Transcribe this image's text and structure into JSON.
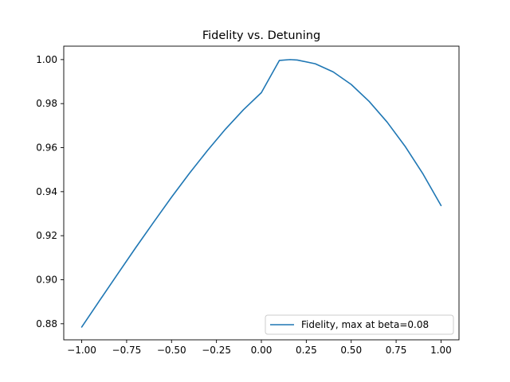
{
  "chart_data": {
    "type": "line",
    "title": "Fidelity vs. Detuning",
    "xlabel": "",
    "ylabel": "",
    "xlim": [
      -1.1,
      1.1
    ],
    "ylim": [
      0.8727,
      1.0061
    ],
    "grid": false,
    "legend_position": "lower-right",
    "x_ticks": [
      -1.0,
      -0.75,
      -0.5,
      -0.25,
      0.0,
      0.25,
      0.5,
      0.75,
      1.0
    ],
    "x_tick_labels": [
      "−1.00",
      "−0.75",
      "−0.50",
      "−0.25",
      "0.00",
      "0.25",
      "0.50",
      "0.75",
      "1.00"
    ],
    "y_ticks": [
      0.88,
      0.9,
      0.92,
      0.94,
      0.96,
      0.98,
      1.0
    ],
    "y_tick_labels": [
      "0.88",
      "0.90",
      "0.92",
      "0.94",
      "0.96",
      "0.98",
      "1.00"
    ],
    "series": [
      {
        "name": "Fidelity, max at beta=0.08",
        "color": "#1f77b4",
        "x": [
          -1.0,
          -0.9,
          -0.8,
          -0.7,
          -0.6,
          -0.5,
          -0.4,
          -0.3,
          -0.2,
          -0.1,
          0.0,
          0.1,
          0.16,
          0.2,
          0.3,
          0.4,
          0.5,
          0.6,
          0.7,
          0.8,
          0.9,
          1.0
        ],
        "y": [
          0.8785,
          0.8906,
          0.9026,
          0.9145,
          0.9261,
          0.9375,
          0.9484,
          0.9587,
          0.9684,
          0.9772,
          0.985,
          0.9996,
          1.0,
          0.9998,
          0.9981,
          0.9944,
          0.9887,
          0.981,
          0.9716,
          0.9606,
          0.948,
          0.9337
        ]
      }
    ]
  }
}
